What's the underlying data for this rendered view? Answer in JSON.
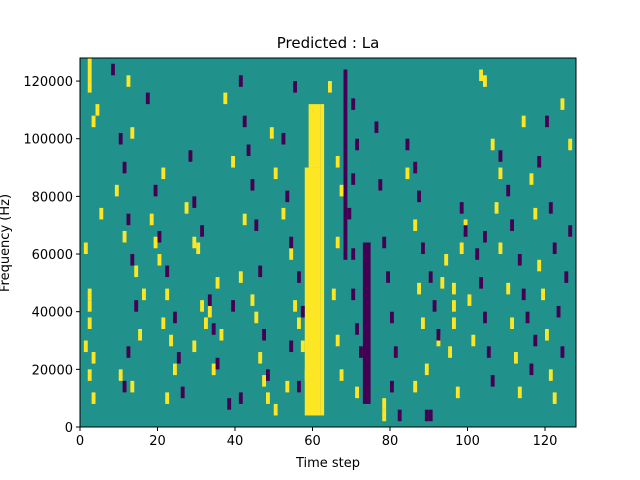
{
  "chart_data": {
    "type": "heatmap",
    "title": "Predicted : La",
    "xlabel": "Time step",
    "ylabel": "Frequency (Hz)",
    "xlim": [
      0,
      128
    ],
    "ylim": [
      0,
      128000
    ],
    "xticks": [
      0,
      20,
      40,
      60,
      80,
      100,
      120
    ],
    "yticks": [
      0,
      20000,
      40000,
      60000,
      80000,
      100000,
      120000
    ],
    "colormap": "viridis",
    "levels": {
      "background": {
        "value": 0,
        "color": "#21918c"
      },
      "high": {
        "value": 1,
        "color": "#fde725"
      },
      "low": {
        "value": -1,
        "color": "#440154"
      }
    },
    "high_bands": [
      {
        "x": [
          58,
          62
        ],
        "y": [
          4000,
          90000
        ]
      },
      {
        "x": [
          59,
          62
        ],
        "y": [
          90000,
          112000
        ]
      },
      {
        "x": [
          62,
          63
        ],
        "y": [
          4000,
          112000
        ]
      }
    ],
    "low_bands": [
      {
        "x": [
          68,
          69
        ],
        "y": [
          58000,
          124000
        ]
      },
      {
        "x": [
          73,
          75
        ],
        "y": [
          8000,
          64000
        ]
      }
    ],
    "high_cells": [
      [
        2,
        124000
      ],
      [
        2,
        120000
      ],
      [
        2,
        116000
      ],
      [
        4,
        108000
      ],
      [
        3,
        104000
      ],
      [
        5,
        72000
      ],
      [
        1,
        60000
      ],
      [
        2,
        44000
      ],
      [
        2,
        40000
      ],
      [
        2,
        34000
      ],
      [
        1,
        26000
      ],
      [
        3,
        22000
      ],
      [
        2,
        16000
      ],
      [
        3,
        8000
      ],
      [
        10,
        16000
      ],
      [
        12,
        118000
      ],
      [
        13,
        100000
      ],
      [
        9,
        80000
      ],
      [
        11,
        64000
      ],
      [
        14,
        52000
      ],
      [
        16,
        44000
      ],
      [
        15,
        30000
      ],
      [
        13,
        12000
      ],
      [
        21,
        86000
      ],
      [
        18,
        70000
      ],
      [
        19,
        62000
      ],
      [
        20,
        56000
      ],
      [
        22,
        44000
      ],
      [
        21,
        34000
      ],
      [
        23,
        28000
      ],
      [
        24,
        18000
      ],
      [
        22,
        8000
      ],
      [
        27,
        74000
      ],
      [
        29,
        62000
      ],
      [
        30,
        60000
      ],
      [
        31,
        40000
      ],
      [
        29,
        26000
      ],
      [
        33,
        38000
      ],
      [
        32,
        34000
      ],
      [
        35,
        48000
      ],
      [
        36,
        30000
      ],
      [
        34,
        18000
      ],
      [
        37,
        112000
      ],
      [
        39,
        90000
      ],
      [
        42,
        70000
      ],
      [
        41,
        50000
      ],
      [
        44,
        42000
      ],
      [
        45,
        36000
      ],
      [
        46,
        22000
      ],
      [
        47,
        14000
      ],
      [
        48,
        8000
      ],
      [
        49,
        100000
      ],
      [
        50,
        86000
      ],
      [
        52,
        72000
      ],
      [
        54,
        58000
      ],
      [
        55,
        40000
      ],
      [
        56,
        34000
      ],
      [
        57,
        26000
      ],
      [
        58,
        16000
      ],
      [
        53,
        12000
      ],
      [
        50,
        4000
      ],
      [
        64,
        116000
      ],
      [
        66,
        90000
      ],
      [
        67,
        80000
      ],
      [
        66,
        62000
      ],
      [
        65,
        44000
      ],
      [
        66,
        28000
      ],
      [
        67,
        16000
      ],
      [
        78,
        2000
      ],
      [
        78,
        6000
      ],
      [
        71,
        10000
      ],
      [
        84,
        86000
      ],
      [
        86,
        68000
      ],
      [
        87,
        46000
      ],
      [
        88,
        34000
      ],
      [
        89,
        18000
      ],
      [
        86,
        12000
      ],
      [
        92,
        28000
      ],
      [
        93,
        48000
      ],
      [
        94,
        56000
      ],
      [
        96,
        46000
      ],
      [
        96,
        40000
      ],
      [
        96,
        34000
      ],
      [
        95,
        24000
      ],
      [
        97,
        10000
      ],
      [
        98,
        60000
      ],
      [
        99,
        68000
      ],
      [
        100,
        42000
      ],
      [
        101,
        28000
      ],
      [
        103,
        120000
      ],
      [
        104,
        118000
      ],
      [
        106,
        96000
      ],
      [
        108,
        86000
      ],
      [
        107,
        74000
      ],
      [
        108,
        60000
      ],
      [
        110,
        46000
      ],
      [
        111,
        34000
      ],
      [
        112,
        22000
      ],
      [
        113,
        10000
      ],
      [
        114,
        104000
      ],
      [
        116,
        84000
      ],
      [
        117,
        72000
      ],
      [
        118,
        54000
      ],
      [
        119,
        44000
      ],
      [
        120,
        30000
      ],
      [
        121,
        16000
      ],
      [
        122,
        8000
      ],
      [
        124,
        110000
      ],
      [
        126,
        96000
      ]
    ],
    "low_cells": [
      [
        8,
        122000
      ],
      [
        10,
        98000
      ],
      [
        11,
        88000
      ],
      [
        12,
        70000
      ],
      [
        13,
        56000
      ],
      [
        14,
        40000
      ],
      [
        12,
        24000
      ],
      [
        11,
        12000
      ],
      [
        17,
        112000
      ],
      [
        19,
        80000
      ],
      [
        20,
        64000
      ],
      [
        22,
        52000
      ],
      [
        24,
        36000
      ],
      [
        25,
        22000
      ],
      [
        26,
        10000
      ],
      [
        28,
        92000
      ],
      [
        29,
        76000
      ],
      [
        31,
        66000
      ],
      [
        33,
        42000
      ],
      [
        34,
        32000
      ],
      [
        35,
        20000
      ],
      [
        39,
        40000
      ],
      [
        38,
        6000
      ],
      [
        41,
        118000
      ],
      [
        42,
        104000
      ],
      [
        43,
        94000
      ],
      [
        44,
        82000
      ],
      [
        45,
        68000
      ],
      [
        46,
        52000
      ],
      [
        47,
        30000
      ],
      [
        48,
        16000
      ],
      [
        41,
        8000
      ],
      [
        55,
        116000
      ],
      [
        52,
        98000
      ],
      [
        53,
        78000
      ],
      [
        54,
        62000
      ],
      [
        56,
        50000
      ],
      [
        57,
        38000
      ],
      [
        54,
        26000
      ],
      [
        56,
        12000
      ],
      [
        70,
        110000
      ],
      [
        71,
        96000
      ],
      [
        70,
        84000
      ],
      [
        69,
        72000
      ],
      [
        70,
        58000
      ],
      [
        70,
        44000
      ],
      [
        71,
        32000
      ],
      [
        72,
        24000
      ],
      [
        76,
        102000
      ],
      [
        77,
        82000
      ],
      [
        78,
        62000
      ],
      [
        79,
        50000
      ],
      [
        80,
        36000
      ],
      [
        81,
        24000
      ],
      [
        80,
        12000
      ],
      [
        82,
        2000
      ],
      [
        84,
        96000
      ],
      [
        86,
        88000
      ],
      [
        87,
        78000
      ],
      [
        88,
        60000
      ],
      [
        90,
        50000
      ],
      [
        91,
        40000
      ],
      [
        92,
        30000
      ],
      [
        89,
        2000
      ],
      [
        90,
        2000
      ],
      [
        98,
        74000
      ],
      [
        99,
        66000
      ],
      [
        102,
        58000
      ],
      [
        103,
        48000
      ],
      [
        104,
        36000
      ],
      [
        105,
        24000
      ],
      [
        106,
        14000
      ],
      [
        104,
        64000
      ],
      [
        108,
        92000
      ],
      [
        110,
        80000
      ],
      [
        111,
        68000
      ],
      [
        113,
        56000
      ],
      [
        114,
        44000
      ],
      [
        115,
        36000
      ],
      [
        117,
        28000
      ],
      [
        116,
        18000
      ],
      [
        118,
        90000
      ],
      [
        120,
        104000
      ],
      [
        121,
        74000
      ],
      [
        122,
        60000
      ],
      [
        123,
        38000
      ],
      [
        124,
        24000
      ],
      [
        125,
        50000
      ],
      [
        126,
        66000
      ]
    ]
  }
}
